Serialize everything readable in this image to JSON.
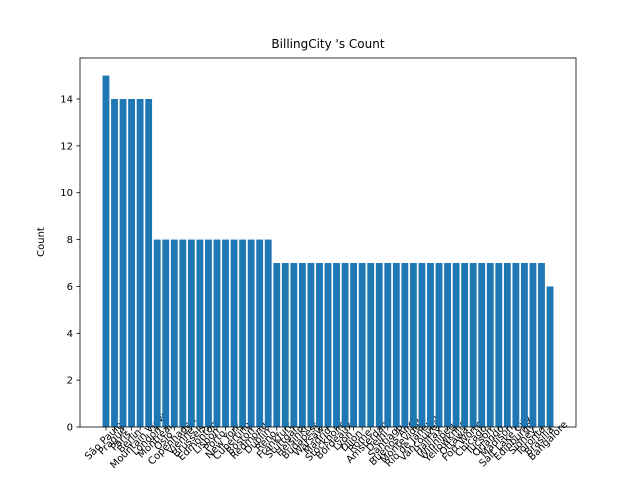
{
  "chart_data": {
    "type": "bar",
    "title": "BillingCity 's Count",
    "y_label": "Count",
    "categories": [
      "São Paulo",
      "Prague",
      "Paris",
      "Berlin",
      "Mountain View",
      "London",
      "Montréal",
      "Oslo",
      "Copenhagen",
      "Vienne",
      "Brussels",
      "Edmonton",
      "Lisbon",
      "Porto",
      "New York",
      "Cupertino",
      "Boston",
      "Redmond",
      "Dublin",
      "Reno",
      "Frankfurt",
      "Stuttgart",
      "Helsinki",
      "Budapest",
      "Warsaw",
      "Madrid",
      "Stockholm",
      "Bordeaux",
      "Lyon",
      "Dijon",
      "Rome",
      "Amsterdam",
      "Delhi",
      "Santiago",
      "Buenos Aires",
      "Montevideo",
      "Rio de Janeiro",
      "Vancouver",
      "Halifax",
      "Winnipeg",
      "Yellowknife",
      "Ottawa",
      "Fort Worth",
      "Chicago",
      "Tucson",
      "Orlando",
      "Madison",
      "Salt Lake City",
      "Edinburgh",
      "Sidney",
      "Toronto",
      "Brasília",
      "Bangalore"
    ],
    "values": [
      15,
      14,
      14,
      14,
      14,
      14,
      8,
      8,
      8,
      8,
      8,
      8,
      8,
      8,
      8,
      8,
      8,
      8,
      8,
      8,
      7,
      7,
      7,
      7,
      7,
      7,
      7,
      7,
      7,
      7,
      7,
      7,
      7,
      7,
      7,
      7,
      7,
      7,
      7,
      7,
      7,
      7,
      7,
      7,
      7,
      7,
      7,
      7,
      7,
      7,
      7,
      7,
      6
    ],
    "color": "#1f77b4",
    "ylim": [
      0,
      15.75
    ],
    "yticks": [
      0,
      2,
      4,
      6,
      8,
      10,
      12,
      14
    ],
    "grid": false
  }
}
